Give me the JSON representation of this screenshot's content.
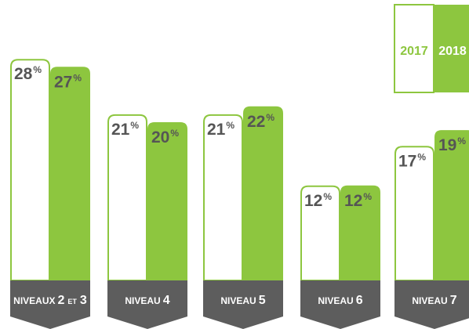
{
  "chart_data": {
    "type": "bar",
    "categories": [
      {
        "prefix": "NIVEAUX",
        "num": "2",
        "joiner": "ET",
        "num2": "3"
      },
      {
        "prefix": "NIVEAU",
        "num": "4"
      },
      {
        "prefix": "NIVEAU",
        "num": "5"
      },
      {
        "prefix": "NIVEAU",
        "num": "6"
      },
      {
        "prefix": "NIVEAU",
        "num": "7"
      }
    ],
    "series": [
      {
        "name": "2017",
        "values": [
          28,
          21,
          21,
          12,
          17
        ],
        "value_labels": [
          "28",
          "21",
          "21",
          "12",
          "17"
        ],
        "style": "outline"
      },
      {
        "name": "2018",
        "values": [
          27,
          20,
          22,
          12,
          19
        ],
        "value_labels": [
          "27",
          "20",
          "22",
          "12",
          "19"
        ],
        "style": "filled"
      }
    ],
    "unit_symbol": "%",
    "ylim": [
      0,
      30
    ],
    "legend_placement": "top-right",
    "colors": {
      "accent": "#8dc63f",
      "text": "#555555",
      "category_bg": "#5d5d5d",
      "category_text": "#ffffff"
    }
  }
}
